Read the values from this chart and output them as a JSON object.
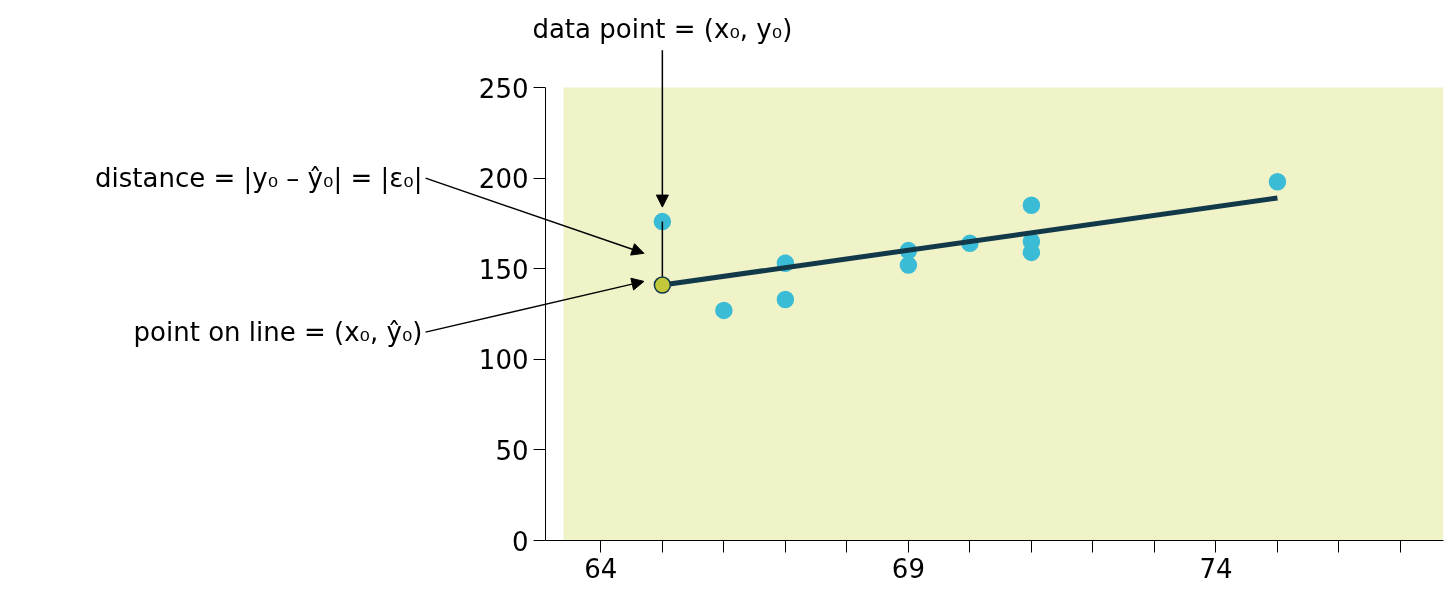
{
  "chart_data": {
    "type": "scatter",
    "marker": "circle",
    "grid": false,
    "xlim": [
      63.1,
      77.7
    ],
    "ylim": [
      0,
      250
    ],
    "xticks": [
      64,
      {
        "value": 65,
        "label": null
      },
      {
        "value": 66,
        "label": null
      },
      {
        "value": 67,
        "label": null
      },
      {
        "value": 68,
        "label": null
      },
      69,
      {
        "value": 70,
        "label": null
      },
      {
        "value": 71,
        "label": null
      },
      {
        "value": 72,
        "label": null
      },
      {
        "value": 73,
        "label": null
      },
      74,
      {
        "value": 75,
        "label": null
      },
      {
        "value": 76,
        "label": null
      },
      {
        "value": 77,
        "label": null
      }
    ],
    "yticks": [
      0,
      50,
      100,
      150,
      200,
      250
    ],
    "series": [
      {
        "color": "#3bbcd6",
        "x": [
          65,
          66,
          67,
          67,
          69,
          69,
          70,
          71,
          71,
          71,
          75
        ],
        "values": [
          176,
          127,
          153,
          133,
          160,
          152,
          164,
          185,
          165,
          159,
          198
        ]
      },
      {
        "type": "line",
        "marker": "none",
        "color": "#12394a",
        "x": [
          65,
          75
        ],
        "values": [
          141,
          189
        ]
      },
      {
        "type": "line",
        "marker": "none",
        "color": "#000000",
        "x": [
          65,
          65
        ],
        "values": [
          141,
          176
        ]
      },
      {
        "color": "#c2c83a",
        "x": [
          65
        ],
        "values": [
          141
        ]
      }
    ],
    "annotations": [
      "data point = (x₀, y₀)",
      "distance = |y₀ – ŷ₀| = |ε₀|",
      "point on line = (x₀, ŷ₀)"
    ]
  }
}
